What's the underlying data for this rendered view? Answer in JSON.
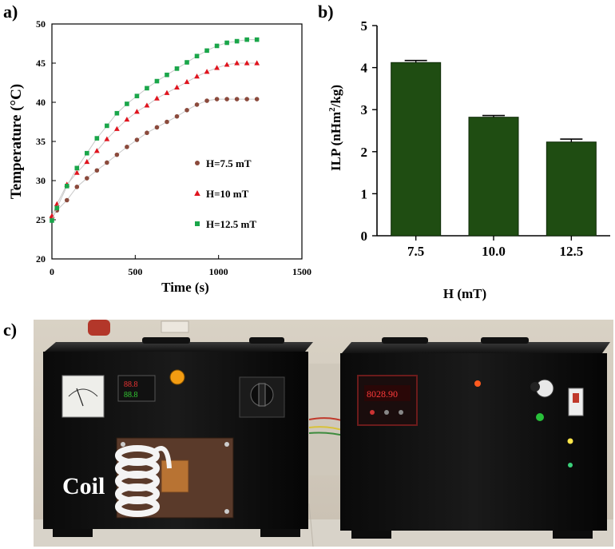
{
  "panels": {
    "a": "a)",
    "b": "b)",
    "c": "c)"
  },
  "chart_data": [
    {
      "type": "scatter",
      "xlabel": "Time (s)",
      "ylabel": "Temperature (°C)",
      "xlim": [
        0,
        1500
      ],
      "ylim": [
        20,
        50
      ],
      "xticks": [
        0,
        500,
        1000,
        1500
      ],
      "yticks": [
        20,
        25,
        30,
        35,
        40,
        45,
        50
      ],
      "legend_position": "center-right",
      "series": [
        {
          "name": "H=7.5 mT",
          "color": "#8b4a3c",
          "marker": "circle",
          "x": [
            0,
            30,
            90,
            150,
            210,
            270,
            330,
            390,
            450,
            510,
            570,
            630,
            690,
            750,
            810,
            870,
            930,
            990,
            1050,
            1110,
            1170,
            1230
          ],
          "y": [
            25.3,
            26.2,
            27.5,
            29.2,
            30.3,
            31.3,
            32.3,
            33.3,
            34.3,
            35.2,
            36.1,
            36.8,
            37.5,
            38.2,
            39.0,
            39.7,
            40.2,
            40.4,
            40.4,
            40.4,
            40.4,
            40.4
          ]
        },
        {
          "name": "H=10 mT",
          "color": "#e0141e",
          "marker": "triangle",
          "x": [
            0,
            30,
            90,
            150,
            210,
            270,
            330,
            390,
            450,
            510,
            570,
            630,
            690,
            750,
            810,
            870,
            930,
            990,
            1050,
            1110,
            1170,
            1230
          ],
          "y": [
            25.5,
            27.0,
            29.5,
            31.0,
            32.4,
            33.8,
            35.3,
            36.6,
            37.8,
            38.8,
            39.6,
            40.5,
            41.2,
            41.9,
            42.6,
            43.3,
            43.9,
            44.4,
            44.8,
            45.0,
            45.0,
            45.0
          ]
        },
        {
          "name": "H=12.5 mT",
          "color": "#1aa64a",
          "marker": "square",
          "x": [
            0,
            30,
            90,
            150,
            210,
            270,
            330,
            390,
            450,
            510,
            570,
            630,
            690,
            750,
            810,
            870,
            930,
            990,
            1050,
            1110,
            1170,
            1230
          ],
          "y": [
            24.9,
            26.5,
            29.3,
            31.6,
            33.5,
            35.4,
            37.0,
            38.6,
            39.8,
            40.8,
            41.8,
            42.7,
            43.5,
            44.3,
            45.1,
            45.9,
            46.6,
            47.2,
            47.6,
            47.8,
            48.0,
            48.0
          ]
        }
      ]
    },
    {
      "type": "bar",
      "categories": [
        "7.5",
        "10.0",
        "12.5"
      ],
      "values": [
        4.12,
        2.82,
        2.23
      ],
      "errors": [
        0.05,
        0.04,
        0.07
      ],
      "xlabel": "H (mT)",
      "ylabel_main": "ILP (nHm",
      "ylabel_sup": "2",
      "ylabel_end": "/kg)",
      "ylim": [
        0,
        5
      ],
      "yticks": [
        0,
        1,
        2,
        3,
        4,
        5
      ],
      "bar_color": "#1f4d12"
    }
  ],
  "photo": {
    "coil_label": "Coil",
    "timer_display": "8028.90",
    "meter_display_top": "88.8",
    "meter_display_bottom": "88.8"
  }
}
